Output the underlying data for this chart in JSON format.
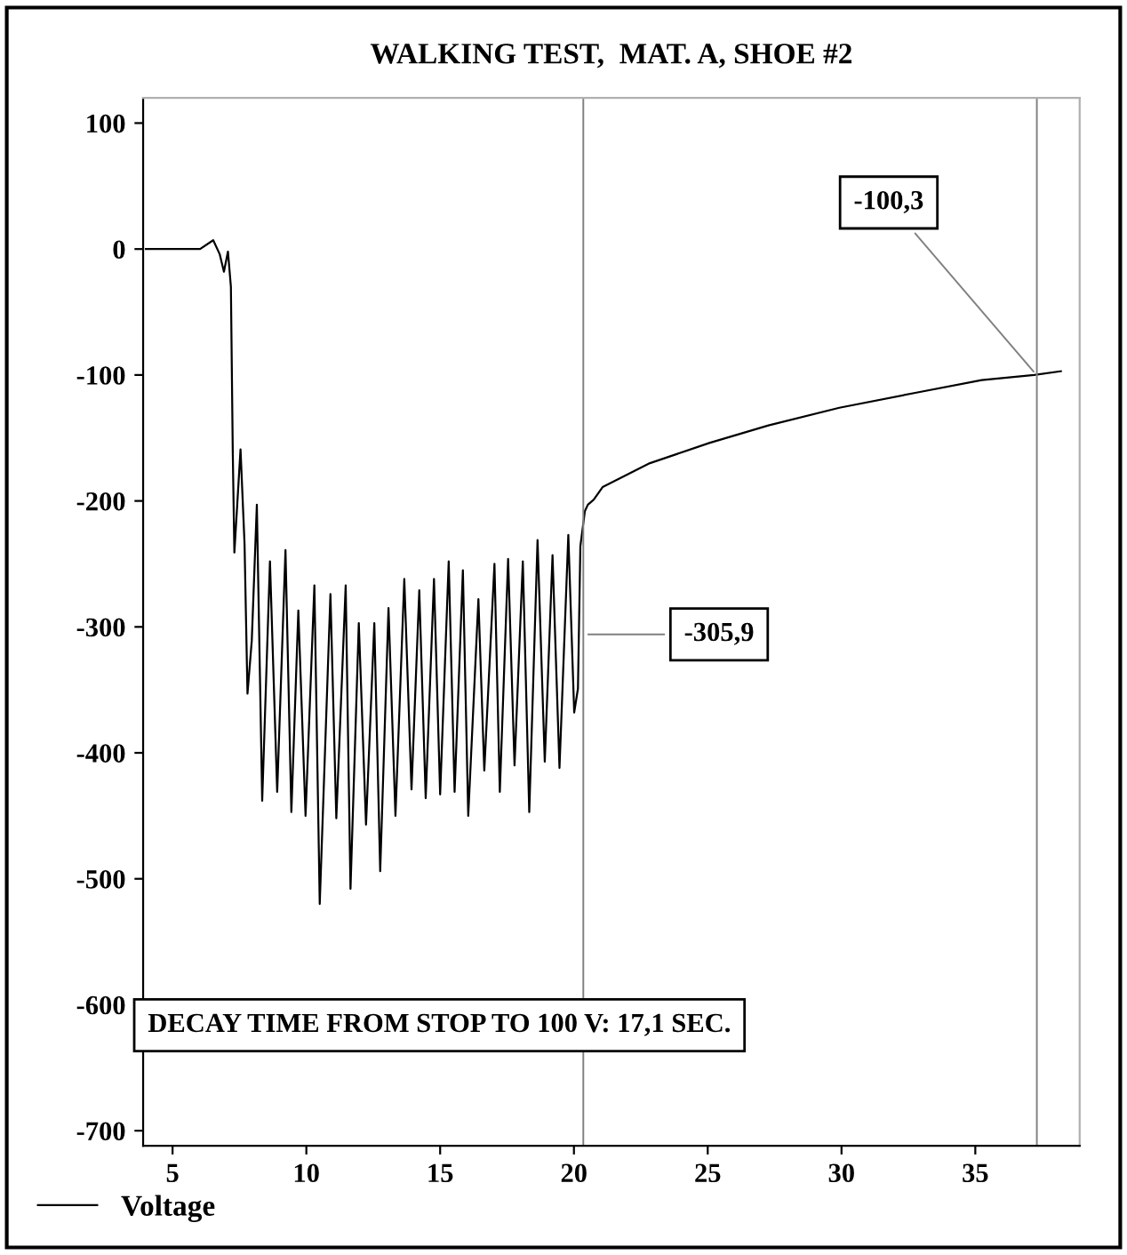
{
  "chart_data": {
    "type": "line",
    "title": "WALKING TEST,  MAT. A, SHOE #2",
    "x": [
      4.0,
      6.03,
      6.52,
      6.76,
      6.92,
      7.07,
      7.18,
      7.25,
      7.31,
      7.54,
      7.69,
      7.8,
      7.96,
      8.15,
      8.35,
      8.64,
      8.91,
      9.22,
      9.44,
      9.7,
      9.97,
      10.3,
      10.5,
      10.9,
      11.12,
      11.47,
      11.65,
      11.96,
      12.23,
      12.54,
      12.76,
      13.07,
      13.33,
      13.66,
      13.93,
      14.22,
      14.46,
      14.77,
      15.0,
      15.32,
      15.54,
      15.85,
      16.05,
      16.43,
      16.65,
      17.03,
      17.23,
      17.54,
      17.78,
      18.09,
      18.33,
      18.64,
      18.91,
      19.2,
      19.46,
      19.79,
      20.01,
      20.15,
      20.24,
      20.41,
      20.52,
      20.74,
      21.07,
      22.84,
      25.06,
      27.27,
      29.92,
      32.8,
      35.24,
      37.2,
      38.2
    ],
    "series": [
      {
        "name": "Voltage",
        "color": "#000000",
        "values": [
          0,
          0,
          7,
          -4,
          -18,
          -2,
          -30,
          -161,
          -241,
          -159,
          -234,
          -353,
          -311,
          -203,
          -438,
          -248,
          -431,
          -239,
          -447,
          -287,
          -450,
          -267,
          -520,
          -274,
          -452,
          -267,
          -508,
          -297,
          -457,
          -297,
          -494,
          -285,
          -450,
          -262,
          -429,
          -271,
          -436,
          -262,
          -433,
          -248,
          -431,
          -255,
          -450,
          -278,
          -414,
          -250,
          -431,
          -246,
          -410,
          -248,
          -447,
          -231,
          -407,
          -243,
          -412,
          -227,
          -368,
          -349,
          -236,
          -208,
          -203,
          -199,
          -189,
          -170,
          -154,
          -140,
          -126,
          -114,
          -104,
          -100,
          -97
        ]
      }
    ],
    "xlim": [
      3.9,
      38.9
    ],
    "ylim": [
      -712,
      120
    ],
    "xticks": [
      5,
      10,
      15,
      20,
      25,
      30,
      35
    ],
    "yticks": [
      100,
      0,
      -100,
      -200,
      -300,
      -400,
      -500,
      -600,
      -700
    ],
    "ref_lines": [
      {
        "axis": "x",
        "value": 20.35,
        "color": "#808080"
      },
      {
        "axis": "x",
        "value": 37.3,
        "color": "#808080"
      }
    ],
    "annotations": [
      {
        "text": "-305,9",
        "x": 20.35,
        "y": -305.9
      },
      {
        "text": "-100,3",
        "x": 37.3,
        "y": -100.3
      },
      "DECAY TIME FROM STOP TO 100 V: 17,1 SEC."
    ],
    "legend": "bottom left",
    "grid": false
  }
}
